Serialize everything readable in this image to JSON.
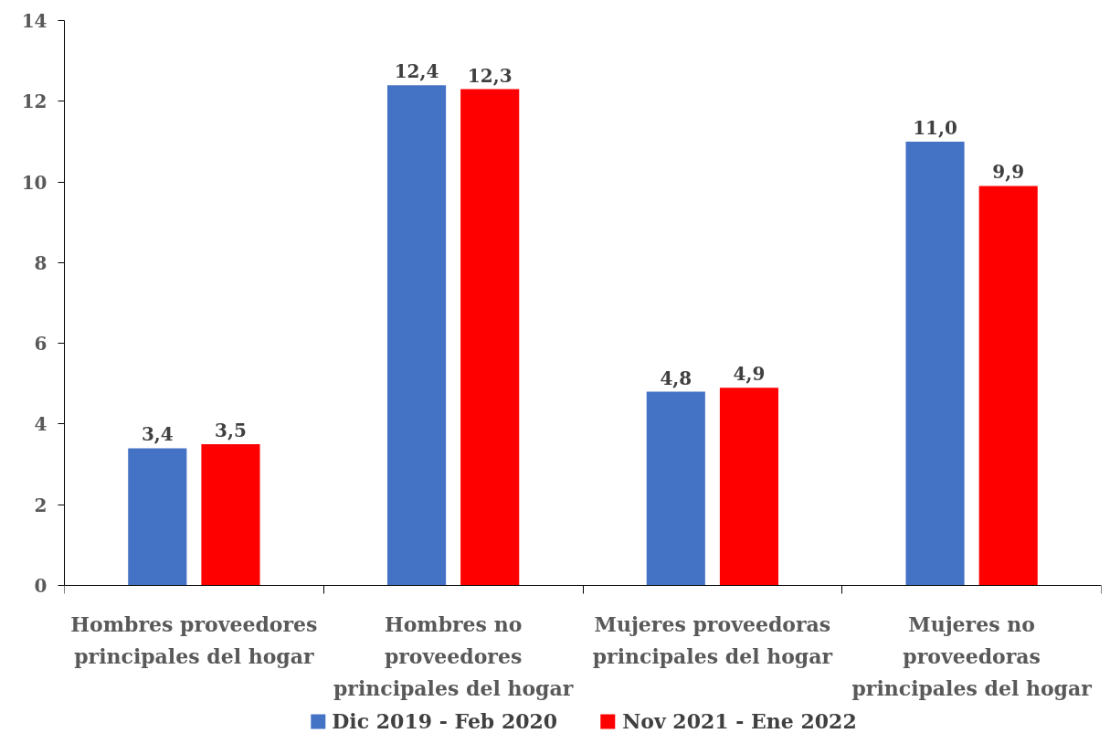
{
  "chart_data": {
    "type": "bar",
    "categories": [
      "Hombres proveedores principales del hogar",
      "Hombres no proveedores principales del hogar",
      "Mujeres proveedoras principales del hogar",
      "Mujeres no proveedoras principales del hogar"
    ],
    "series": [
      {
        "name": "Dic 2019 - Feb 2020",
        "color": "#4472c4",
        "values": [
          3.4,
          12.4,
          4.8,
          11.0
        ],
        "value_labels": [
          "3,4",
          "12,4",
          "4,8",
          "11,0"
        ]
      },
      {
        "name": "Nov 2021 - Ene 2022",
        "color": "#ff0000",
        "values": [
          3.5,
          12.3,
          4.9,
          9.9
        ],
        "value_labels": [
          "3,5",
          "12,3",
          "4,9",
          "9,9"
        ]
      }
    ],
    "ylim": [
      0,
      14
    ],
    "yticks": [
      0,
      2,
      4,
      6,
      8,
      10,
      12,
      14
    ],
    "grid": false,
    "legend": "bottom"
  }
}
